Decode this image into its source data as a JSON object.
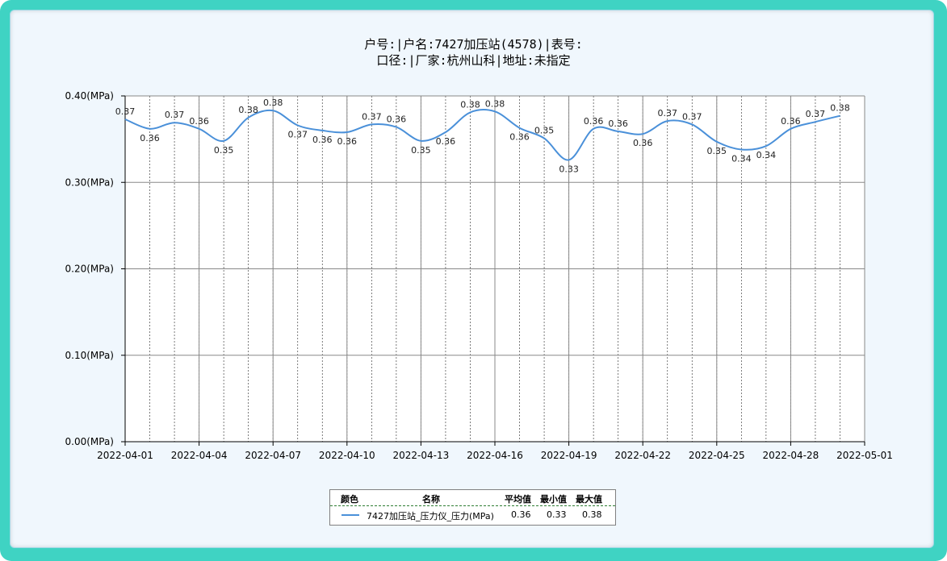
{
  "title": {
    "line1": "户号:|户名:7427加压站(4578)|表号:",
    "line2": "口径:|厂家:杭州山科|地址:未指定"
  },
  "chart_data": {
    "type": "line",
    "x_ticks": [
      "2022-04-01",
      "2022-04-04",
      "2022-04-07",
      "2022-04-10",
      "2022-04-13",
      "2022-04-16",
      "2022-04-19",
      "2022-04-22",
      "2022-04-25",
      "2022-04-28",
      "2022-05-01"
    ],
    "y_ticks": [
      "0.00(MPa)",
      "0.10(MPa)",
      "0.20(MPa)",
      "0.30(MPa)",
      "0.40(MPa)"
    ],
    "ylim": [
      0,
      0.4
    ],
    "xlim": [
      "2022-04-01",
      "2022-05-01"
    ],
    "grid": true,
    "series": [
      {
        "name": "7427加压站_压力仪_压力(MPa)",
        "color": "#4a90d9",
        "points": [
          {
            "x": "2022-04-01",
            "y": 0.373,
            "label": "0.37"
          },
          {
            "x": "2022-04-02",
            "y": 0.362,
            "label": "0.36"
          },
          {
            "x": "2022-04-03",
            "y": 0.369,
            "label": "0.37"
          },
          {
            "x": "2022-04-04",
            "y": 0.362,
            "label": "0.36"
          },
          {
            "x": "2022-04-05",
            "y": 0.348,
            "label": "0.35"
          },
          {
            "x": "2022-04-06",
            "y": 0.375,
            "label": "0.38"
          },
          {
            "x": "2022-04-07",
            "y": 0.383,
            "label": "0.38"
          },
          {
            "x": "2022-04-08",
            "y": 0.366,
            "label": "0.37"
          },
          {
            "x": "2022-04-09",
            "y": 0.36,
            "label": "0.36"
          },
          {
            "x": "2022-04-10",
            "y": 0.358,
            "label": "0.36"
          },
          {
            "x": "2022-04-11",
            "y": 0.367,
            "label": "0.37"
          },
          {
            "x": "2022-04-12",
            "y": 0.364,
            "label": "0.36"
          },
          {
            "x": "2022-04-13",
            "y": 0.348,
            "label": "0.35"
          },
          {
            "x": "2022-04-14",
            "y": 0.358,
            "label": "0.36"
          },
          {
            "x": "2022-04-15",
            "y": 0.381,
            "label": "0.38"
          },
          {
            "x": "2022-04-16",
            "y": 0.382,
            "label": "0.38"
          },
          {
            "x": "2022-04-17",
            "y": 0.363,
            "label": "0.36"
          },
          {
            "x": "2022-04-18",
            "y": 0.351,
            "label": "0.35"
          },
          {
            "x": "2022-04-19",
            "y": 0.326,
            "label": "0.33"
          },
          {
            "x": "2022-04-20",
            "y": 0.362,
            "label": "0.36"
          },
          {
            "x": "2022-04-21",
            "y": 0.359,
            "label": "0.36"
          },
          {
            "x": "2022-04-22",
            "y": 0.356,
            "label": "0.36"
          },
          {
            "x": "2022-04-23",
            "y": 0.371,
            "label": "0.37"
          },
          {
            "x": "2022-04-24",
            "y": 0.367,
            "label": "0.37"
          },
          {
            "x": "2022-04-25",
            "y": 0.347,
            "label": "0.35"
          },
          {
            "x": "2022-04-26",
            "y": 0.338,
            "label": "0.34"
          },
          {
            "x": "2022-04-27",
            "y": 0.342,
            "label": "0.34"
          },
          {
            "x": "2022-04-28",
            "y": 0.362,
            "label": "0.36"
          },
          {
            "x": "2022-04-29",
            "y": 0.37,
            "label": "0.37"
          },
          {
            "x": "2022-04-30",
            "y": 0.377,
            "label": "0.38"
          }
        ]
      }
    ]
  },
  "legend": {
    "headers": {
      "color": "颜色",
      "name": "名称",
      "avg": "平均值",
      "min": "最小值",
      "max": "最大值"
    },
    "row": {
      "name": "7427加压站_压力仪_压力(MPa)",
      "avg": "0.36",
      "min": "0.33",
      "max": "0.38"
    }
  }
}
